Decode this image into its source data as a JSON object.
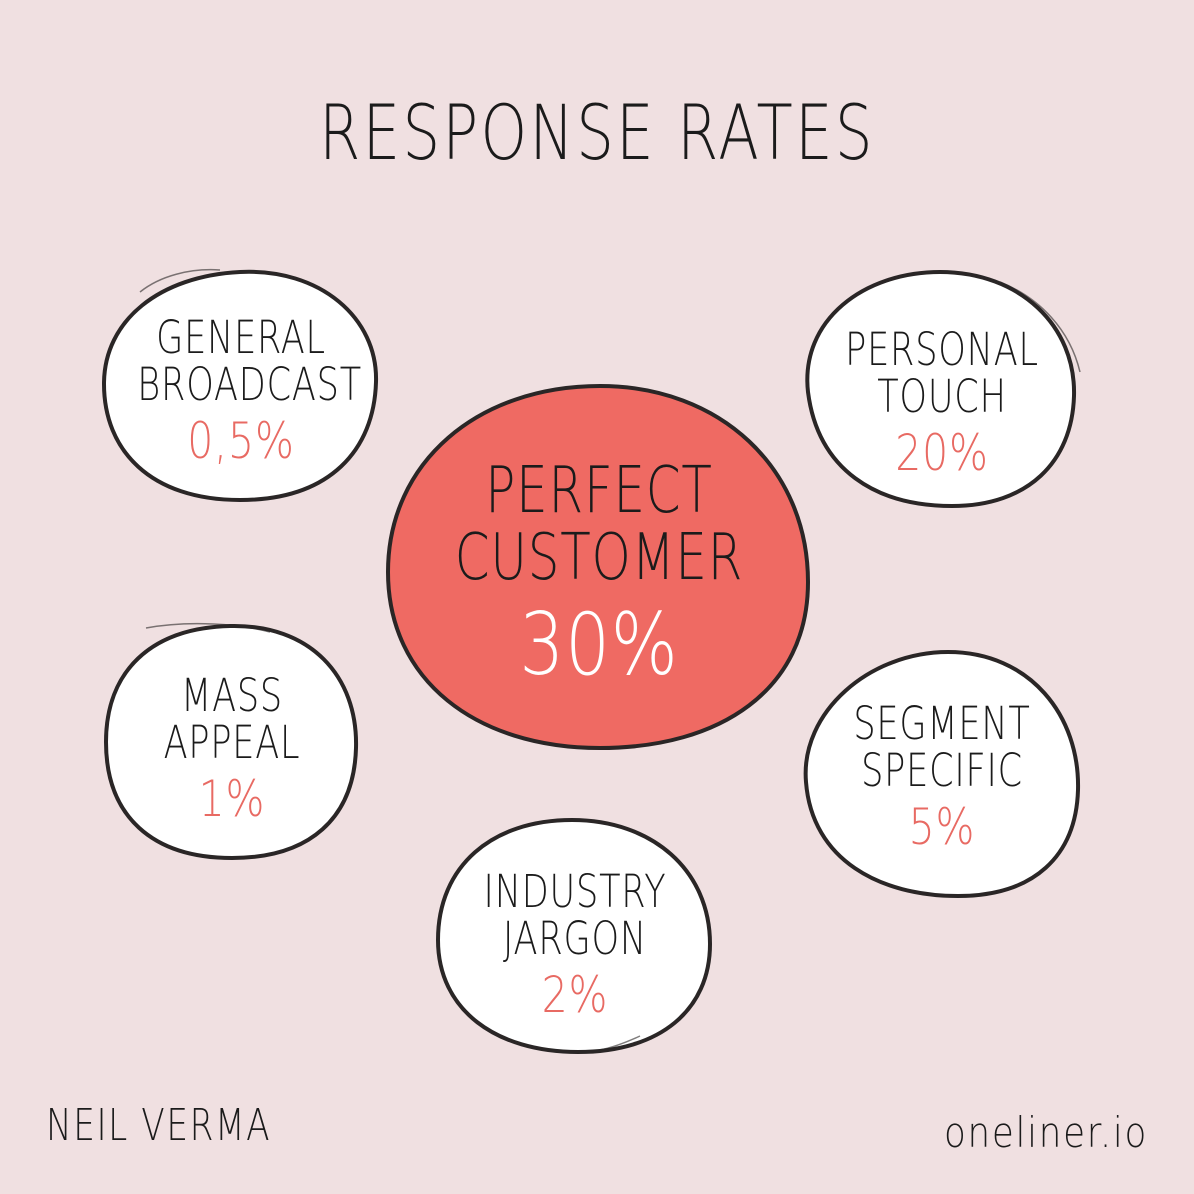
{
  "title": "RESPONSE RATES",
  "colors": {
    "background": "#f0e0e1",
    "accent": "#ef6a63",
    "bubble_fill": "#ffffff",
    "outline": "#2a2626",
    "percent_text": "#e86a63"
  },
  "center": {
    "label_line1": "PERFECT",
    "label_line2": "CUSTOMER",
    "value": "30%"
  },
  "bubbles": [
    {
      "line1": "GENERAL",
      "line2": "BROADCAST",
      "value": "0,5%"
    },
    {
      "line1": "PERSONAL",
      "line2": "TOUCH",
      "value": "20%"
    },
    {
      "line1": "MASS",
      "line2": "APPEAL",
      "value": "1%"
    },
    {
      "line1": "SEGMENT",
      "line2": "SPECIFIC",
      "value": "5%"
    },
    {
      "line1": "INDUSTRY",
      "line2": "JARGON",
      "value": "2%"
    }
  ],
  "footer": {
    "author": "NEIL VERMA",
    "site": "oneliner.io"
  }
}
